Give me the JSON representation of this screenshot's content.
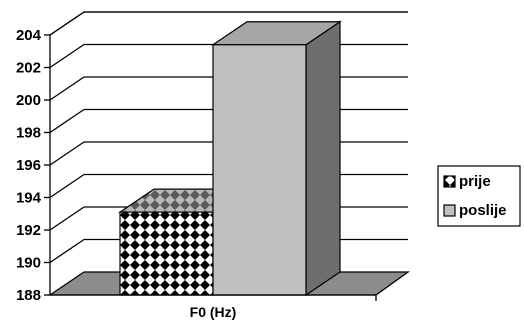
{
  "chart_data": {
    "type": "bar",
    "style": "3d-column",
    "categories": [
      "F0 (Hz)"
    ],
    "series": [
      {
        "name": "prije",
        "values": [
          193.1
        ],
        "pattern": "checker-diamonds",
        "color": "#000000"
      },
      {
        "name": "poslije",
        "values": [
          203.4
        ],
        "pattern": "solid",
        "color": "#c0c0c0"
      }
    ],
    "xlabel": "",
    "ylabel": "",
    "ylim": [
      188,
      204
    ],
    "yticks": [
      "188",
      "190",
      "192",
      "194",
      "196",
      "198",
      "200",
      "202",
      "204"
    ],
    "grid": true,
    "legend_position": "right"
  }
}
